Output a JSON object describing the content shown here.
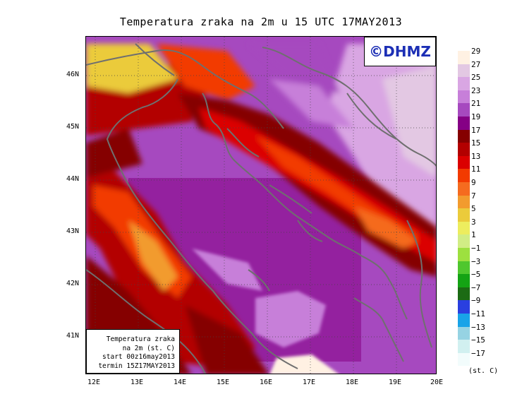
{
  "title": "Temperatura zraka na 2m u 15 UTC 17MAY2013",
  "logo": "©DHMZ",
  "info_lines": [
    "Temperatura zraka",
    "na 2m (st. C)",
    "start 00z16may2013",
    "termin 15Z17MAY2013"
  ],
  "lat_ticks": [
    "46N",
    "45N",
    "44N",
    "43N",
    "42N",
    "41N"
  ],
  "lon_ticks": [
    "12E",
    "13E",
    "14E",
    "15E",
    "16E",
    "17E",
    "18E",
    "19E",
    "20E"
  ],
  "legend": {
    "unit": "(st. C)",
    "labels": [
      "29",
      "27",
      "25",
      "23",
      "21",
      "19",
      "17",
      "15",
      "13",
      "11",
      "9",
      "7",
      "5",
      "3",
      "1",
      "−1",
      "−3",
      "−5",
      "−7",
      "−9",
      "−11",
      "−13",
      "−15",
      "−17"
    ],
    "colors": [
      "#fff1e3",
      "#e3c8e3",
      "#d9a6e3",
      "#c77fd9",
      "#a649bf",
      "#850085",
      "#850000",
      "#b30000",
      "#db0000",
      "#f23a00",
      "#f56b1f",
      "#f29b2e",
      "#ebcb3b",
      "#eded5e",
      "#d1ed85",
      "#9de03f",
      "#4fc72e",
      "#14a314",
      "#1c6b14",
      "#2a3fe0",
      "#18a3e8",
      "#96d3e3",
      "#d1f0f0",
      "#f2fcfc"
    ]
  }
}
